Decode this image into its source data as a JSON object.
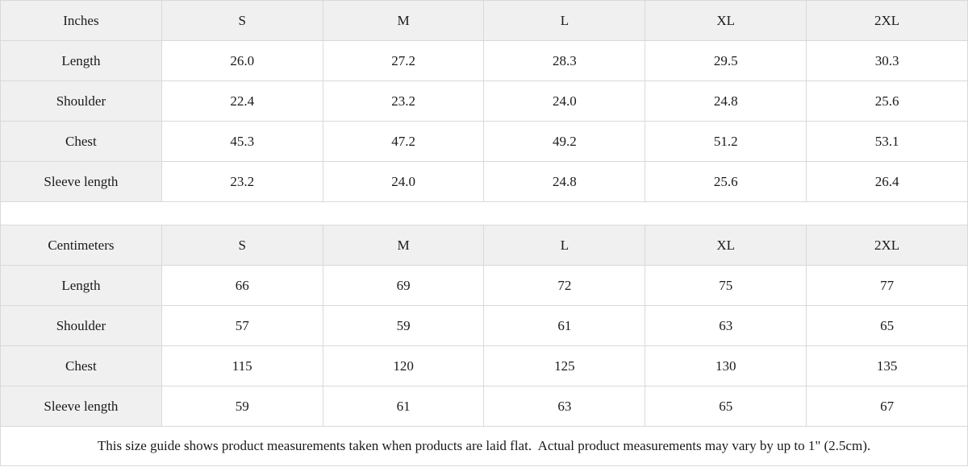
{
  "tables": [
    {
      "unit_label": "Inches",
      "sizes": [
        "S",
        "M",
        "L",
        "XL",
        "2XL"
      ],
      "rows": [
        {
          "label": "Length",
          "values": [
            "26.0",
            "27.2",
            "28.3",
            "29.5",
            "30.3"
          ]
        },
        {
          "label": "Shoulder",
          "values": [
            "22.4",
            "23.2",
            "24.0",
            "24.8",
            "25.6"
          ]
        },
        {
          "label": "Chest",
          "values": [
            "45.3",
            "47.2",
            "49.2",
            "51.2",
            "53.1"
          ]
        },
        {
          "label": "Sleeve length",
          "values": [
            "23.2",
            "24.0",
            "24.8",
            "25.6",
            "26.4"
          ]
        }
      ]
    },
    {
      "unit_label": "Centimeters",
      "sizes": [
        "S",
        "M",
        "L",
        "XL",
        "2XL"
      ],
      "rows": [
        {
          "label": "Length",
          "values": [
            "66",
            "69",
            "72",
            "75",
            "77"
          ]
        },
        {
          "label": "Shoulder",
          "values": [
            "57",
            "59",
            "61",
            "63",
            "65"
          ]
        },
        {
          "label": "Chest",
          "values": [
            "115",
            "120",
            "125",
            "130",
            "135"
          ]
        },
        {
          "label": "Sleeve length",
          "values": [
            "59",
            "61",
            "63",
            "65",
            "67"
          ]
        }
      ]
    }
  ],
  "footer": {
    "note": "This size guide shows product measurements taken when products are laid flat.  Actual product measurements may vary by up to 1\" (2.5cm)."
  },
  "colors": {
    "header_background": "#f0f0f1",
    "border": "#d9d9d9",
    "text": "#1a1a1a",
    "cell_background": "#ffffff"
  }
}
